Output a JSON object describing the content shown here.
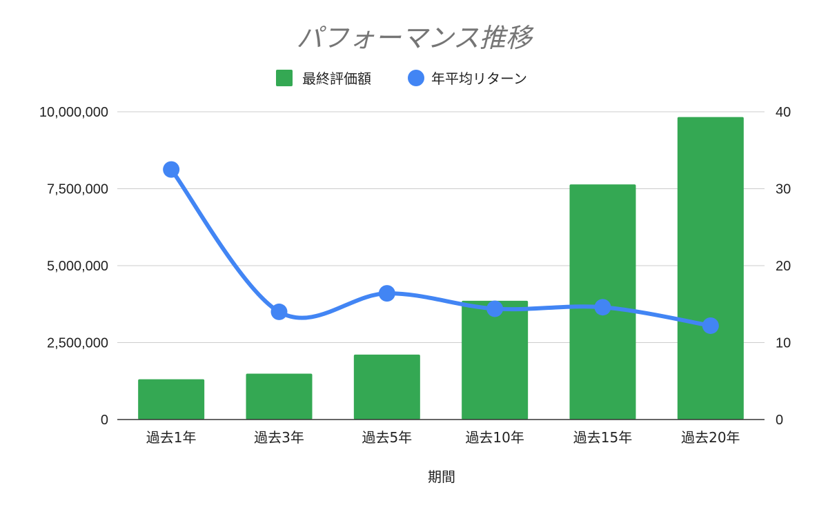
{
  "chart_data": {
    "type": "bar",
    "title": "パフォーマンス推移",
    "xlabel": "期間",
    "ylabel": "",
    "y2label": "",
    "legend_position": "top",
    "grid": true,
    "categories": [
      "過去1年",
      "過去3年",
      "過去5年",
      "過去10年",
      "過去15年",
      "過去20年"
    ],
    "ylim": [
      0,
      10000000
    ],
    "y_ticks": [
      0,
      2500000,
      5000000,
      7500000,
      10000000
    ],
    "y_tick_labels": [
      "0",
      "2,500,000",
      "5,000,000",
      "7,500,000",
      "10,000,000"
    ],
    "y2lim": [
      0,
      40
    ],
    "y2_ticks": [
      0,
      10,
      20,
      30,
      40
    ],
    "y2_tick_labels": [
      "0",
      "10",
      "20",
      "30",
      "40"
    ],
    "series": [
      {
        "name": "最終評価額",
        "type": "bar",
        "axis": "left",
        "color": "#34a853",
        "values": [
          1310000,
          1490000,
          2110000,
          3860000,
          7640000,
          9830000
        ]
      },
      {
        "name": "年平均リターン",
        "type": "line",
        "axis": "right",
        "color": "#4285f4",
        "smooth": true,
        "values": [
          32.5,
          14.0,
          16.4,
          14.4,
          14.6,
          12.2
        ]
      }
    ]
  }
}
